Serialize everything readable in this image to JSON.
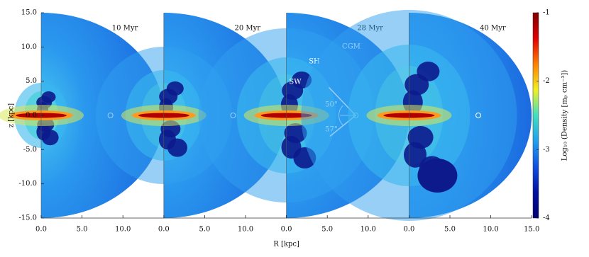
{
  "chart_data": [
    {
      "type": "heatmap",
      "title": "10 Myr",
      "xlim": [
        0,
        15
      ],
      "xticks": [
        {
          "value": 0,
          "label": "0.0"
        },
        {
          "value": 5,
          "label": "5.0"
        },
        {
          "value": 10,
          "label": "10.0"
        }
      ],
      "ylim": [
        -15,
        15
      ],
      "yticks": [
        {
          "value": 15,
          "label": "15.0"
        },
        {
          "value": 10,
          "label": "10.0"
        },
        {
          "value": 5,
          "label": "5.0"
        },
        {
          "value": 0,
          "label": "0.0"
        },
        {
          "value": -5,
          "label": "-5.0"
        },
        {
          "value": -10,
          "label": "-10.0"
        },
        {
          "value": -15,
          "label": "-15.0"
        }
      ],
      "ylabel": "z [kpc]"
    },
    {
      "type": "heatmap",
      "title": "20 Myr",
      "xlim": [
        0,
        15
      ],
      "xticks": [
        {
          "value": 0,
          "label": "0.0"
        },
        {
          "value": 5,
          "label": "5.0"
        },
        {
          "value": 10,
          "label": "10.0"
        }
      ],
      "xlabel": "R [kpc]"
    },
    {
      "type": "heatmap",
      "title": "28 Myr",
      "xlim": [
        0,
        15
      ],
      "xticks": [
        {
          "value": 0,
          "label": "0.0"
        },
        {
          "value": 5,
          "label": "5.0"
        },
        {
          "value": 10,
          "label": "10.0"
        }
      ],
      "annotations": [
        "CGM",
        "SH",
        "SW",
        "50°",
        "57°"
      ]
    },
    {
      "type": "heatmap",
      "title": "40 Myr",
      "xlim": [
        0,
        15
      ],
      "xticks": [
        {
          "value": 0,
          "label": "0.0"
        },
        {
          "value": 5,
          "label": "5.0"
        },
        {
          "value": 10,
          "label": "10.0"
        },
        {
          "value": 15,
          "label": "15.0"
        }
      ]
    },
    {
      "type": "colorbar",
      "label": "Log₁₀ (Density [mₚ cm⁻³])",
      "ylim": [
        -4,
        -1
      ],
      "yticks": [
        -1,
        -2,
        -3,
        -4
      ],
      "colormap": [
        "#7f0000",
        "#e00000",
        "#ff8000",
        "#f0f020",
        "#40e0c0",
        "#20a0f0",
        "#1050e0",
        "#0010a0",
        "#000070"
      ]
    }
  ]
}
